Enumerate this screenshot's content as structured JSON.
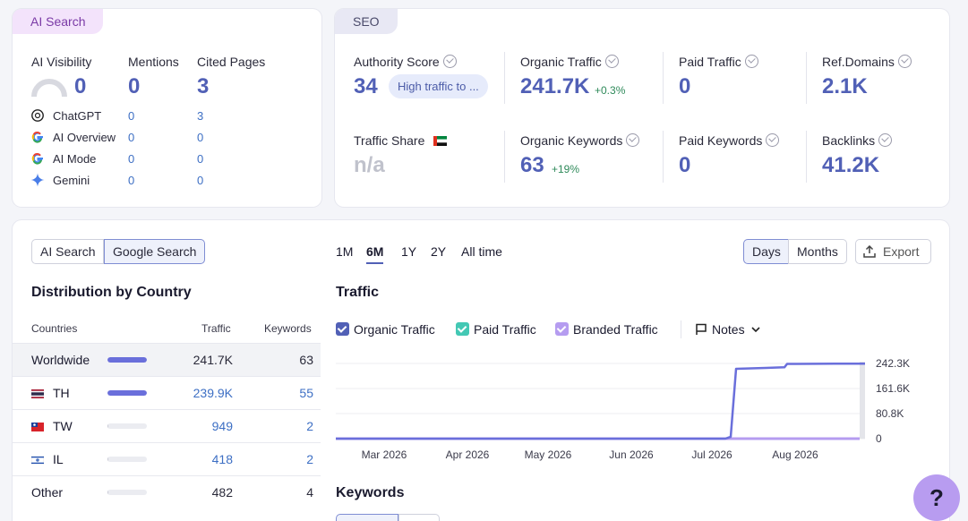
{
  "ai_card": {
    "tab_label": "AI Search",
    "headers": {
      "visibility": "AI Visibility",
      "mentions": "Mentions",
      "cited": "Cited Pages"
    },
    "totals": {
      "visibility": "0",
      "mentions": "0",
      "cited": "3"
    },
    "rows": [
      {
        "name": "ChatGPT",
        "mentions": "0",
        "cited": "3",
        "icon": "chatgpt-icon"
      },
      {
        "name": "AI Overview",
        "mentions": "0",
        "cited": "0",
        "icon": "google-icon"
      },
      {
        "name": "AI Mode",
        "mentions": "0",
        "cited": "0",
        "icon": "google-icon"
      },
      {
        "name": "Gemini",
        "mentions": "0",
        "cited": "0",
        "icon": "gemini-icon"
      }
    ]
  },
  "seo_card": {
    "tab_label": "SEO",
    "authority": {
      "label": "Authority Score",
      "value": "34",
      "badge": "High traffic to ..."
    },
    "organic_traffic": {
      "label": "Organic Traffic",
      "value": "241.7K",
      "delta": "+0.3%"
    },
    "paid_traffic": {
      "label": "Paid Traffic",
      "value": "0"
    },
    "ref_domains": {
      "label": "Ref.Domains",
      "value": "2.1K"
    },
    "traffic_share": {
      "label": "Traffic Share",
      "value": "n/a"
    },
    "organic_keywords": {
      "label": "Organic Keywords",
      "value": "63",
      "delta": "+19%"
    },
    "paid_keywords": {
      "label": "Paid Keywords",
      "value": "0"
    },
    "backlinks": {
      "label": "Backlinks",
      "value": "41.2K"
    }
  },
  "main": {
    "toggle": {
      "ai": "AI Search",
      "google": "Google Search"
    },
    "ranges": [
      "1M",
      "6M",
      "1Y",
      "2Y",
      "All time"
    ],
    "active_range": "6M",
    "view": {
      "days": "Days",
      "months": "Months"
    },
    "export_label": "Export",
    "distribution": {
      "title": "Distribution by Country",
      "columns": [
        "Countries",
        "Traffic",
        "Keywords"
      ],
      "rows": [
        {
          "country": "Worldwide",
          "traffic": "241.7K",
          "keywords": "63",
          "share": 1.0
        },
        {
          "country": "TH",
          "traffic": "239.9K",
          "keywords": "55",
          "share": 0.99
        },
        {
          "country": "TW",
          "traffic": "949",
          "keywords": "2",
          "share": 0.004
        },
        {
          "country": "IL",
          "traffic": "418",
          "keywords": "2",
          "share": 0.002
        },
        {
          "country": "Other",
          "traffic": "482",
          "keywords": "4",
          "share": 0.002
        }
      ]
    },
    "traffic_title": "Traffic",
    "legend": {
      "organic": "Organic Traffic",
      "paid": "Paid Traffic",
      "branded": "Branded Traffic",
      "notes": "Notes"
    },
    "keywords_title": "Keywords",
    "help_label": "?"
  },
  "colors": {
    "accent": "#5160b6",
    "organic": "#6a6fdb",
    "paid": "#43c8b4",
    "branded": "#b59cf0"
  },
  "chart_data": {
    "type": "line",
    "title": "Traffic",
    "x_labels": [
      "Mar 2026",
      "Apr 2026",
      "May 2026",
      "Jun 2026",
      "Jul 2026",
      "Aug 2026"
    ],
    "y_ticks": [
      "242.3K",
      "161.6K",
      "80.8K",
      "0"
    ],
    "ylim": [
      0,
      242300
    ],
    "series": [
      {
        "name": "Organic Traffic",
        "points": [
          [
            "2026-02-15",
            0
          ],
          [
            "2026-03-15",
            0
          ],
          [
            "2026-04-15",
            0
          ],
          [
            "2026-05-15",
            0
          ],
          [
            "2026-06-15",
            0
          ],
          [
            "2026-07-10",
            0
          ],
          [
            "2026-07-12",
            6000
          ],
          [
            "2026-07-14",
            225000
          ],
          [
            "2026-07-25",
            228000
          ],
          [
            "2026-08-01",
            230000
          ],
          [
            "2026-08-02",
            241000
          ],
          [
            "2026-08-20",
            241700
          ],
          [
            "2026-08-31",
            241700
          ]
        ]
      }
    ],
    "grid": true
  }
}
